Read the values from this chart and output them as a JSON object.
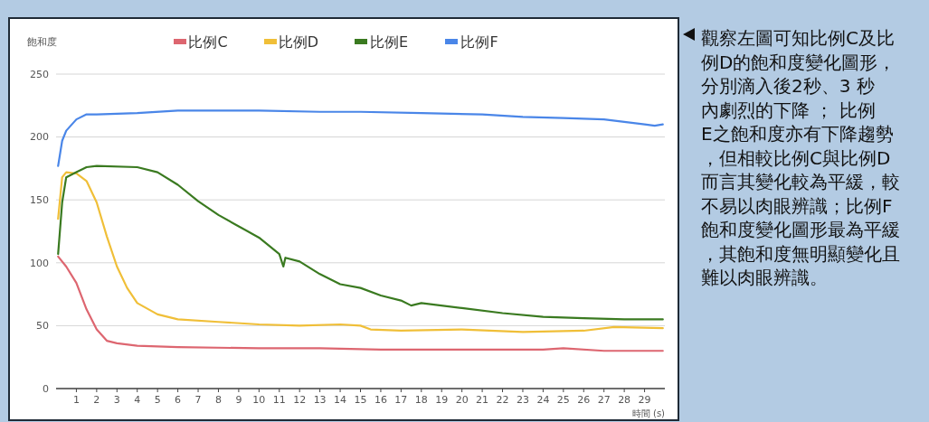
{
  "chart_data": {
    "type": "line",
    "ylabel": "飽和度",
    "xlabel": "時間 (s)",
    "xlim": [
      0,
      30
    ],
    "xticks": [
      1,
      2,
      3,
      4,
      5,
      6,
      7,
      8,
      9,
      10,
      11,
      12,
      13,
      14,
      15,
      16,
      17,
      18,
      19,
      20,
      21,
      22,
      23,
      24,
      25,
      26,
      27,
      28,
      29
    ],
    "ylim": [
      0,
      250
    ],
    "yticks": [
      0,
      50,
      100,
      150,
      200,
      250
    ],
    "grid": "y",
    "legend": "top",
    "marker": "none",
    "line_style": "solid",
    "series": [
      {
        "name": "比例C",
        "color": "#dd6670",
        "x": [
          0.1,
          0.5,
          1,
          1.5,
          2,
          2.5,
          3,
          4,
          6,
          10,
          13,
          16,
          20,
          24,
          25,
          27,
          29.9
        ],
        "values": [
          105,
          97,
          84,
          63,
          47,
          38,
          36,
          34,
          33,
          32,
          32,
          31,
          31,
          31,
          32,
          30,
          30
        ]
      },
      {
        "name": "比例D",
        "color": "#f0bf38",
        "x": [
          0.1,
          0.3,
          0.5,
          1,
          1.5,
          2,
          2.5,
          3,
          3.5,
          4,
          5,
          6,
          8,
          10,
          12,
          14,
          15,
          15.5,
          17,
          20,
          23,
          26,
          27.5,
          29.9
        ],
        "values": [
          135,
          168,
          172,
          171,
          165,
          148,
          121,
          97,
          80,
          68,
          59,
          55,
          53,
          51,
          50,
          51,
          50,
          47,
          46,
          47,
          45,
          46,
          49,
          48
        ]
      },
      {
        "name": "比例E",
        "color": "#3a7a20",
        "x": [
          0.1,
          0.3,
          0.5,
          1,
          1.5,
          2,
          4,
          5,
          6,
          7,
          8,
          9,
          10,
          11,
          11.2,
          11.3,
          12,
          13,
          14,
          15,
          16,
          17,
          17.5,
          18,
          20,
          22,
          24,
          26,
          28,
          29.9
        ],
        "values": [
          107,
          148,
          168,
          172,
          176,
          177,
          176,
          172,
          162,
          149,
          138,
          129,
          120,
          107,
          97,
          104,
          101,
          91,
          83,
          80,
          74,
          70,
          66,
          68,
          64,
          60,
          57,
          56,
          55,
          55
        ]
      },
      {
        "name": "比例F",
        "color": "#4a86e8",
        "x": [
          0.1,
          0.3,
          0.5,
          1,
          1.5,
          2,
          4,
          6,
          10,
          13,
          15,
          18,
          21,
          23,
          25,
          27,
          29,
          29.5,
          29.9
        ],
        "values": [
          177,
          197,
          205,
          214,
          218,
          218,
          219,
          221,
          221,
          220,
          220,
          219,
          218,
          216,
          215,
          214,
          210,
          209,
          210
        ]
      }
    ],
    "annotations": [
      "觀察左圖可知比例C及比例D的飽和度變化圖形，分別滴入後2秒、3 秒內劇烈的下降 ； 比例E之飽和度亦有下降趨勢，但相較比例C與比例D而言其變化較為平緩，較不易以肉眼辨識；比例F飽和度變化圖形最為平緩，其飽和度無明顯變化且難以肉眼辨識。"
    ]
  }
}
